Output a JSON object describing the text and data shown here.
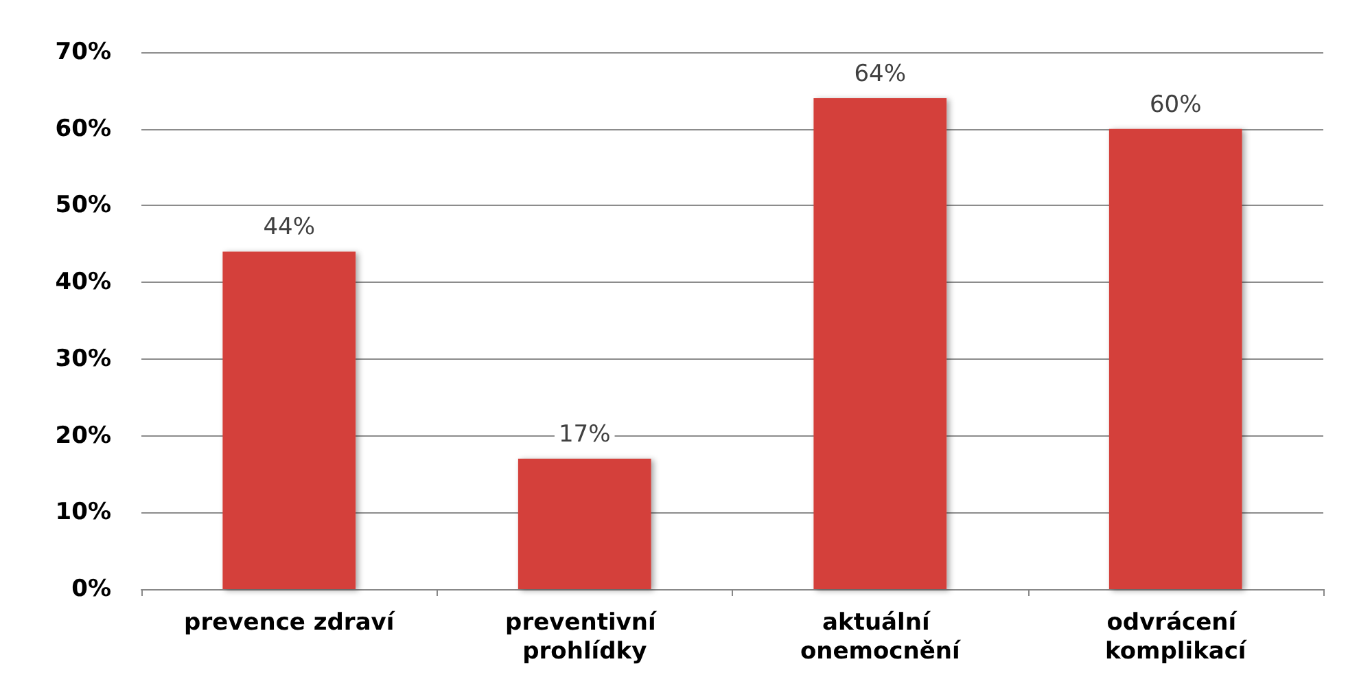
{
  "chart_data": {
    "type": "bar",
    "categories": [
      "prevence zdraví",
      "preventivní prohlídky",
      "aktuální onemocnění",
      "odvrácení komplikací"
    ],
    "values": [
      44,
      17,
      64,
      60
    ],
    "color": "#d43f3a",
    "value_labels": [
      "44%",
      "17%",
      "64%",
      "60%"
    ],
    "ylim": [
      0,
      70
    ],
    "yticks": [
      {
        "value": 0,
        "label": "0%"
      },
      {
        "value": 10,
        "label": "10%"
      },
      {
        "value": 20,
        "label": "20%"
      },
      {
        "value": 30,
        "label": "30%"
      },
      {
        "value": 40,
        "label": "40%"
      },
      {
        "value": 50,
        "label": "50%"
      },
      {
        "value": 60,
        "label": "60%"
      },
      {
        "value": 70,
        "label": "70%"
      }
    ],
    "grid": "y"
  }
}
